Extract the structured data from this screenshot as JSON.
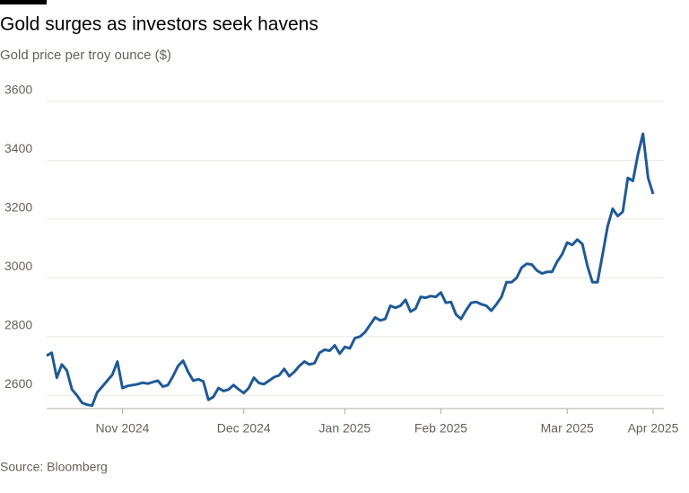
{
  "chart_data": {
    "type": "line",
    "title": "Gold surges as investors seek havens",
    "subtitle": "Gold price per troy ounce ($)",
    "source": "Source: Bloomberg",
    "categories": [
      null,
      null,
      null,
      null,
      null,
      null,
      null,
      null,
      null,
      null,
      null,
      null,
      null,
      null,
      null,
      "Nov 2024",
      null,
      null,
      null,
      null,
      null,
      null,
      null,
      null,
      null,
      null,
      null,
      null,
      null,
      null,
      null,
      null,
      null,
      null,
      null,
      null,
      null,
      null,
      null,
      "Dec 2024",
      null,
      null,
      null,
      null,
      null,
      null,
      null,
      null,
      null,
      null,
      null,
      null,
      null,
      null,
      null,
      null,
      null,
      null,
      null,
      "Jan 2025",
      null,
      null,
      null,
      null,
      null,
      null,
      null,
      null,
      null,
      null,
      null,
      null,
      null,
      null,
      null,
      null,
      null,
      null,
      "Feb 2025",
      null,
      null,
      null,
      null,
      null,
      null,
      null,
      null,
      null,
      null,
      null,
      null,
      null,
      null,
      null,
      null,
      null,
      null,
      null,
      null,
      null,
      null,
      null,
      null,
      "Mar 2025",
      null,
      null,
      null,
      null,
      null,
      null,
      null,
      null,
      null,
      null,
      null,
      null,
      null,
      null,
      null,
      null,
      "Apr 2025"
    ],
    "values": [
      2735,
      2745,
      2660,
      2705,
      2685,
      2620,
      2600,
      2575,
      2568,
      2565,
      2610,
      2630,
      2650,
      2670,
      2715,
      2625,
      2632,
      2635,
      2638,
      2643,
      2640,
      2645,
      2650,
      2630,
      2635,
      2665,
      2700,
      2718,
      2680,
      2650,
      2655,
      2648,
      2585,
      2595,
      2625,
      2615,
      2620,
      2635,
      2620,
      2608,
      2625,
      2660,
      2642,
      2638,
      2650,
      2662,
      2668,
      2690,
      2665,
      2680,
      2700,
      2715,
      2705,
      2710,
      2745,
      2755,
      2752,
      2770,
      2742,
      2765,
      2760,
      2795,
      2800,
      2815,
      2840,
      2865,
      2855,
      2860,
      2905,
      2898,
      2905,
      2925,
      2885,
      2895,
      2935,
      2932,
      2938,
      2935,
      2950,
      2915,
      2918,
      2875,
      2860,
      2890,
      2915,
      2918,
      2910,
      2905,
      2888,
      2910,
      2935,
      2985,
      2985,
      3000,
      3035,
      3048,
      3045,
      3025,
      3015,
      3020,
      3020,
      3055,
      3080,
      3120,
      3112,
      3130,
      3115,
      3040,
      2985,
      2985,
      3080,
      3175,
      3235,
      3210,
      3225,
      3340,
      3330,
      3420,
      3490,
      3340,
      3285
    ],
    "color": "#1f5a96",
    "ylim": [
      2555,
      3600
    ],
    "yticks": [
      2600,
      2800,
      3000,
      3200,
      3400,
      3600
    ],
    "grid": true
  }
}
